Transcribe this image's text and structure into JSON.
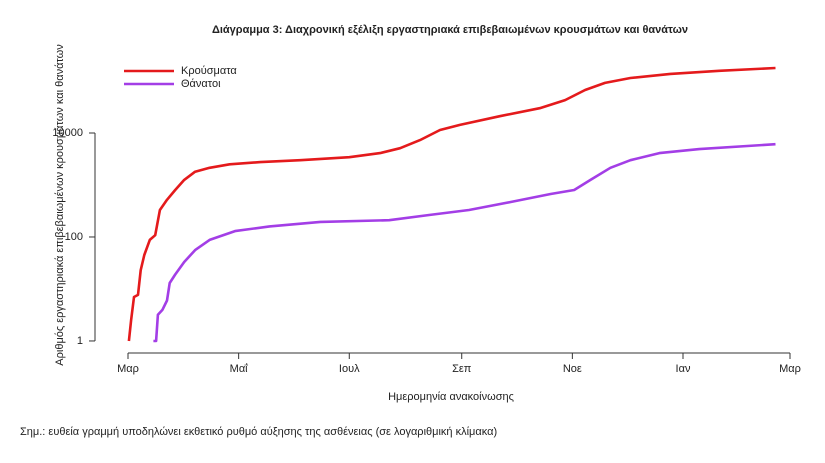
{
  "chart_data": {
    "type": "line",
    "title": "Διάγραμμα 3: Διαχρονική εξέλιξη εργαστηριακά επιβεβαιωμένων κρουσμάτων και θανάτων",
    "xlabel": "Ημερομηνία ανακοίνωσης",
    "ylabel": "Αριθμός εργαστηριακά επιβεβαιωμένων κρουσμάτων και θανάτων",
    "note": "Σημ.: ευθεία γραμμή υποδηλώνει εκθετικό ρυθμό αύξησης της ασθένειας (σε λογαριθμική κλίμακα)",
    "log_y": true,
    "legend": "top-left",
    "xlim": [
      -8,
      365
    ],
    "xticks": [
      {
        "value": 0,
        "label": "Μαρ"
      },
      {
        "value": 61,
        "label": "Μαΐ"
      },
      {
        "value": 122,
        "label": "Ιουλ"
      },
      {
        "value": 184,
        "label": "Σεπ"
      },
      {
        "value": 245,
        "label": "Νοε"
      },
      {
        "value": 306,
        "label": "Ιαν"
      },
      {
        "value": 365,
        "label": "Μαρ"
      }
    ],
    "ylim": [
      0.6,
      400000
    ],
    "yticks": [
      1,
      100,
      10000
    ],
    "series": [
      {
        "name": "Κρούσματα",
        "color": "#e41a1c",
        "x": [
          0.5,
          1.7,
          3.3,
          5.5,
          7,
          9,
          12,
          15,
          17.6,
          21.5,
          26,
          31,
          37,
          45,
          56,
          73,
          95,
          122,
          139,
          150,
          161,
          172,
          183,
          205,
          227,
          241,
          252,
          263,
          277,
          299,
          326,
          357
        ],
        "values": [
          1,
          2.5,
          7,
          7.7,
          23,
          45,
          88,
          108,
          330,
          520,
          800,
          1250,
          1800,
          2140,
          2500,
          2760,
          3000,
          3430,
          4100,
          5100,
          7300,
          11400,
          14300,
          21000,
          30000,
          43000,
          67000,
          92000,
          114000,
          137000,
          157000,
          178000
        ]
      },
      {
        "name": "Θάνατοι",
        "color": "#a33ee6",
        "x": [
          14,
          15.5,
          16.5,
          19,
          21.5,
          23,
          26,
          31,
          37,
          45,
          59,
          78,
          106,
          144,
          166,
          188,
          211,
          233,
          246,
          255,
          266,
          277,
          293,
          315,
          357
        ],
        "values": [
          1,
          1,
          3.2,
          4,
          6,
          13,
          19,
          33,
          56,
          88,
          130,
          160,
          195,
          210,
          265,
          330,
          470,
          670,
          800,
          1250,
          2140,
          3000,
          4100,
          4900,
          6100
        ]
      }
    ]
  }
}
